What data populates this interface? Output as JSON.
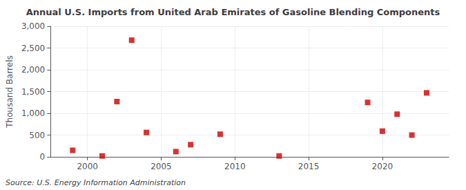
{
  "chart_data": {
    "type": "scatter",
    "title": "Annual U.S. Imports from United Arab Emirates of Gasoline Blending Components",
    "ylabel": "Thousand Barrels",
    "annotation": "Source: U.S. Energy Information Administration",
    "x": [
      1999,
      2001,
      2002,
      2003,
      2004,
      2006,
      2007,
      2009,
      2013,
      2019,
      2020,
      2021,
      2022,
      2023
    ],
    "values": [
      150,
      20,
      1270,
      2680,
      560,
      120,
      280,
      520,
      20,
      1250,
      590,
      980,
      500,
      1470
    ],
    "xlim": [
      1997.5,
      2024.5
    ],
    "xticks": [
      2000,
      2005,
      2010,
      2015,
      2020
    ],
    "ylim": [
      0,
      3000
    ],
    "yticks": [
      0,
      500,
      {
        "value": 1000,
        "label": "1,000"
      },
      {
        "value": 1500,
        "label": "1,500"
      },
      {
        "value": 2000,
        "label": "2,000"
      },
      {
        "value": 2500,
        "label": "2,500"
      },
      {
        "value": 3000,
        "label": "3,000"
      }
    ],
    "color": "#cc0000",
    "marker": "square",
    "grid": true
  }
}
